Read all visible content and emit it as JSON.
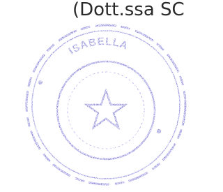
{
  "signature": {
    "name_line": "(Dott.ssa SC"
  },
  "stamp": {
    "arc_text": "ISABELLA"
  }
}
